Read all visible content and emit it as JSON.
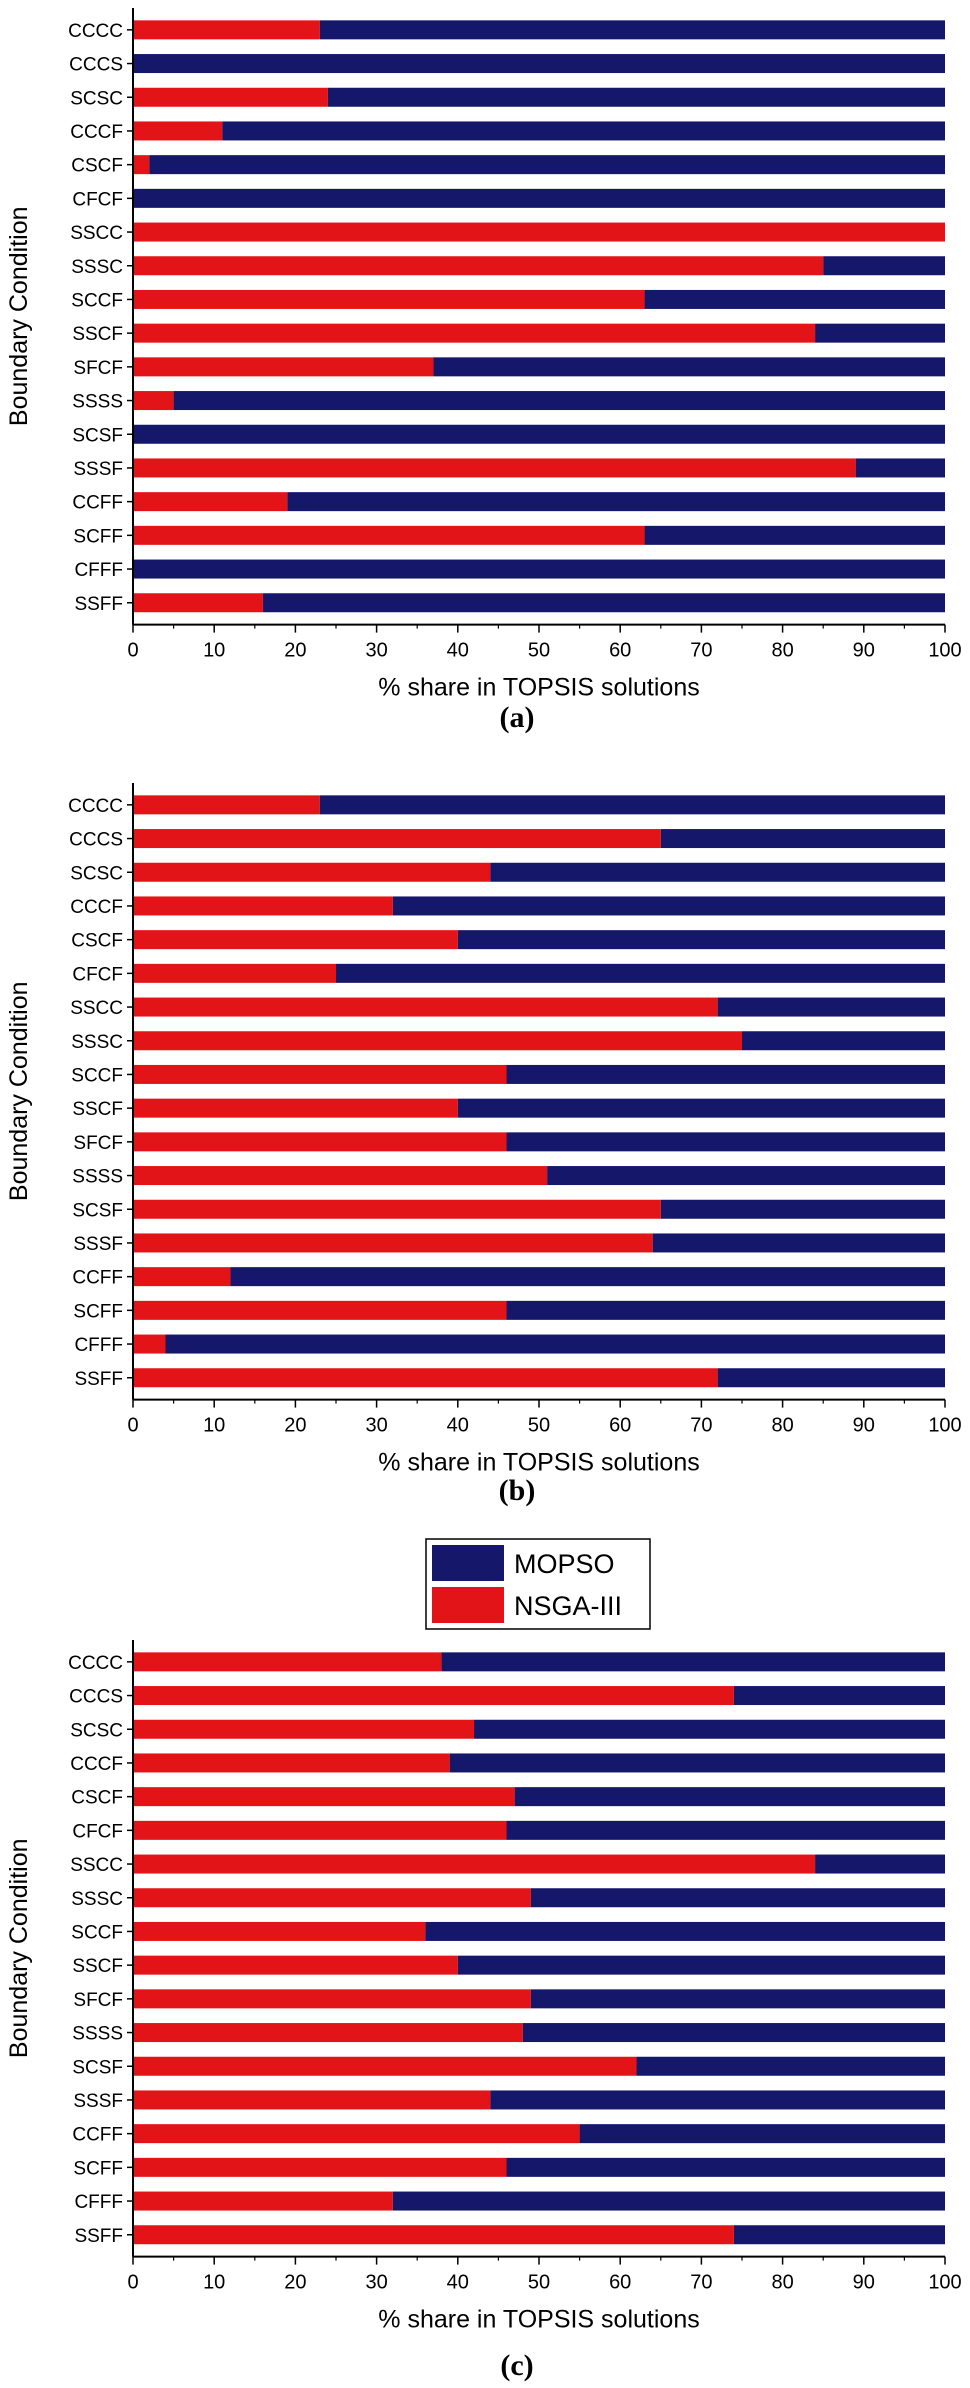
{
  "figure": {
    "panels": [
      "a",
      "b",
      "c"
    ]
  },
  "legend": {
    "entries": [
      "MOPSO",
      "NSGA-III"
    ],
    "colors": [
      "#15176b",
      "#e31418"
    ]
  },
  "colors": {
    "mopso": "#15176b",
    "nsga": "#e31418"
  },
  "chart_data": [
    {
      "type": "bar",
      "orientation": "horizontal",
      "stacked": true,
      "panel_label": "(a)",
      "xlabel": "% share in TOPSIS solutions",
      "ylabel": "Boundary Condition",
      "xlim": [
        0,
        100
      ],
      "xticks": [
        "0",
        "10",
        "20",
        "30",
        "40",
        "50",
        "60",
        "70",
        "80",
        "90",
        "100"
      ],
      "categories": [
        "CCCC",
        "CCCS",
        "SCSC",
        "CCCF",
        "CSCF",
        "CFCF",
        "SSCC",
        "SSSC",
        "SCCF",
        "SSCF",
        "SFCF",
        "SSSS",
        "SCSF",
        "SSSF",
        "CCFF",
        "SCFF",
        "CFFF",
        "SSFF"
      ],
      "series": [
        {
          "name": "NSGA-III",
          "values": [
            23,
            0,
            24,
            11,
            2,
            0,
            100,
            85,
            63,
            84,
            37,
            5,
            0,
            89,
            19,
            63,
            0,
            16
          ]
        },
        {
          "name": "MOPSO",
          "values": [
            77,
            100,
            76,
            89,
            98,
            100,
            0,
            15,
            37,
            16,
            63,
            95,
            100,
            11,
            81,
            37,
            100,
            84
          ]
        }
      ]
    },
    {
      "type": "bar",
      "orientation": "horizontal",
      "stacked": true,
      "panel_label": "(b)",
      "xlabel": "% share in TOPSIS solutions",
      "ylabel": "Boundary Condition",
      "xlim": [
        0,
        100
      ],
      "xticks": [
        "0",
        "10",
        "20",
        "30",
        "40",
        "50",
        "60",
        "70",
        "80",
        "90",
        "100"
      ],
      "categories": [
        "CCCC",
        "CCCS",
        "SCSC",
        "CCCF",
        "CSCF",
        "CFCF",
        "SSCC",
        "SSSC",
        "SCCF",
        "SSCF",
        "SFCF",
        "SSSS",
        "SCSF",
        "SSSF",
        "CCFF",
        "SCFF",
        "CFFF",
        "SSFF"
      ],
      "series": [
        {
          "name": "NSGA-III",
          "values": [
            23,
            65,
            44,
            32,
            40,
            25,
            72,
            75,
            46,
            40,
            46,
            51,
            65,
            64,
            12,
            46,
            4,
            72
          ]
        },
        {
          "name": "MOPSO",
          "values": [
            77,
            35,
            56,
            68,
            60,
            75,
            28,
            25,
            54,
            60,
            54,
            49,
            35,
            36,
            88,
            54,
            96,
            28
          ]
        }
      ]
    },
    {
      "type": "bar",
      "orientation": "horizontal",
      "stacked": true,
      "panel_label": "(c)",
      "xlabel": "% share in TOPSIS solutions",
      "ylabel": "Boundary Condition",
      "xlim": [
        0,
        100
      ],
      "xticks": [
        "0",
        "10",
        "20",
        "30",
        "40",
        "50",
        "60",
        "70",
        "80",
        "90",
        "100"
      ],
      "categories": [
        "CCCC",
        "CCCS",
        "SCSC",
        "CCCF",
        "CSCF",
        "CFCF",
        "SSCC",
        "SSSC",
        "SCCF",
        "SSCF",
        "SFCF",
        "SSSS",
        "SCSF",
        "SSSF",
        "CCFF",
        "SCFF",
        "CFFF",
        "SSFF"
      ],
      "series": [
        {
          "name": "NSGA-III",
          "values": [
            38,
            74,
            42,
            39,
            47,
            46,
            84,
            49,
            36,
            40,
            49,
            48,
            62,
            44,
            55,
            46,
            32,
            74
          ]
        },
        {
          "name": "MOPSO",
          "values": [
            62,
            26,
            58,
            61,
            53,
            54,
            16,
            51,
            64,
            60,
            51,
            52,
            38,
            56,
            45,
            54,
            68,
            26
          ]
        }
      ]
    }
  ]
}
